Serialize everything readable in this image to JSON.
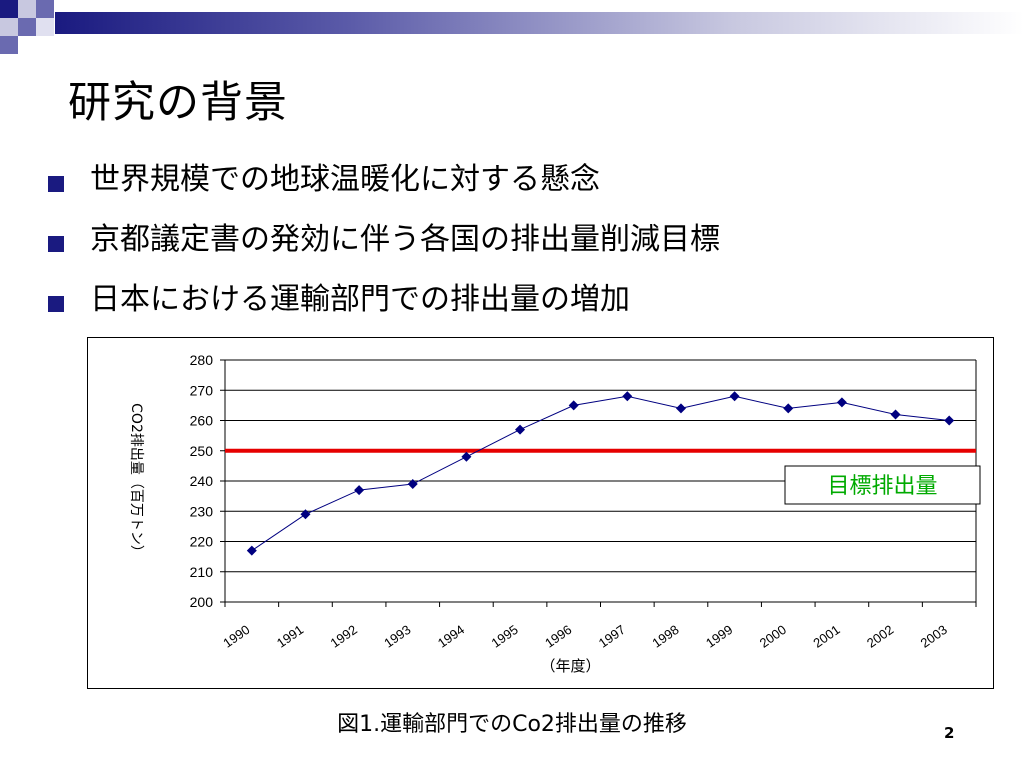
{
  "slide": {
    "title": "研究の背景",
    "bullets": [
      "世界規模での地球温暖化に対する懸念",
      "京都議定書の発効に伴う各国の排出量削減目標",
      "日本における運輸部門での排出量の増加"
    ],
    "caption": "図1.運輸部門でのCo2排出量の推移",
    "page_number": "2",
    "colors": {
      "accent_dark": "#1a1a80",
      "accent_mid": "#6a6ab0",
      "accent_light": "#c8c8e0",
      "target_line": "#e60000",
      "target_label_text": "#00aa00",
      "series_marker": "#000080"
    }
  },
  "chart_data": {
    "type": "line",
    "ylabel": "CO2排出量（百万トン）",
    "xlabel": "（年度）",
    "categories": [
      "1990",
      "1991",
      "1992",
      "1993",
      "1994",
      "1995",
      "1996",
      "1997",
      "1998",
      "1999",
      "2000",
      "2001",
      "2002",
      "2003"
    ],
    "series": [
      {
        "values": [
          217,
          229,
          237,
          239,
          248,
          257,
          265,
          268,
          264,
          268,
          264,
          266,
          262,
          260
        ]
      }
    ],
    "ylim": [
      200,
      280
    ],
    "y_ticks": [
      "200",
      "210",
      "220",
      "230",
      "240",
      "250",
      "260",
      "270",
      "280"
    ],
    "grid": true,
    "target": {
      "value": 250,
      "label": "目標排出量"
    }
  }
}
